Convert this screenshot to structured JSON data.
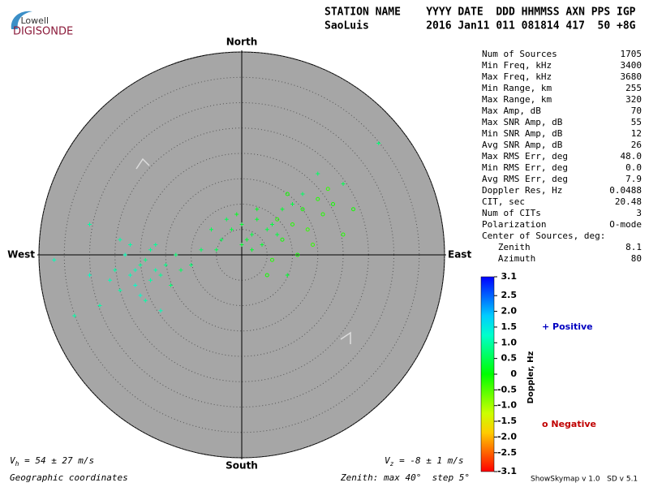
{
  "logo": {
    "top": "Lowell",
    "bottom": "DIGISONDE"
  },
  "header": {
    "line1": "STATION NAME    YYYY DATE  DDD HHMMSS AXN PPS IGP",
    "line2": "SaoLuis         2016 Jan11 011 081814 417  50 +8G"
  },
  "stats": [
    {
      "label": "Num of Sources",
      "value": "1705"
    },
    {
      "label": "Min Freq, kHz",
      "value": "3400"
    },
    {
      "label": "Max Freq, kHz",
      "value": "3680"
    },
    {
      "label": "Min Range, km",
      "value": "255"
    },
    {
      "label": "Max Range, km",
      "value": "320"
    },
    {
      "label": "Max Amp, dB",
      "value": "70"
    },
    {
      "label": "Max SNR Amp, dB",
      "value": "55"
    },
    {
      "label": "Min SNR Amp, dB",
      "value": "12"
    },
    {
      "label": "Avg SNR Amp, dB",
      "value": "26"
    },
    {
      "label": "Max RMS Err, deg",
      "value": "48.0"
    },
    {
      "label": "Min RMS Err, deg",
      "value": "0.0"
    },
    {
      "label": "Avg RMS Err, deg",
      "value": "7.9"
    },
    {
      "label": "Doppler Res, Hz",
      "value": "0.0488"
    },
    {
      "label": "CIT, sec",
      "value": "20.48"
    },
    {
      "label": "Num of CITs",
      "value": "3"
    },
    {
      "label": "Polarization",
      "value": "O-mode"
    },
    {
      "label": "Center of Sources, deg:",
      "value": null
    },
    {
      "label": "   Zenith",
      "value": "8.1"
    },
    {
      "label": "   Azimuth",
      "value": "80"
    }
  ],
  "footer": {
    "vh_v": "V",
    "vh_sub": "h",
    "vh_text": " = 54 ± 27 m/s",
    "vz_v": "V",
    "vz_sub": "z",
    "vz_text": " = -8 ± 1 m/s",
    "coords": "Geographic coordinates",
    "zenith": "Zenith: max 40°  step 5°",
    "version": "ShowSkymap v 1.0   SD v 5.1"
  },
  "chart_data": {
    "type": "skymap",
    "directions": {
      "north": "North",
      "south": "South",
      "east": "East",
      "west": "West"
    },
    "rlim": [
      0,
      40
    ],
    "rticks": [
      5,
      10,
      15,
      20,
      25,
      30,
      35,
      40
    ],
    "colorbar": {
      "label": "Doppler, Hz",
      "lim": [
        -3.1,
        3.1
      ],
      "ticks": [
        3.1,
        2.5,
        {
          "value": 2.0,
          "label": "2.0"
        },
        1.5,
        {
          "value": 1.0,
          "label": "1.0"
        },
        0.5,
        0,
        -0.5,
        {
          "value": -1.0,
          "label": "-1.0"
        },
        -1.5,
        {
          "value": -2.0,
          "label": "-2.0"
        },
        -2.5,
        -3.1
      ]
    },
    "series": [
      {
        "name": "+ Positive",
        "color": "#0000c0",
        "x": [
          -25,
          -22,
          -20,
          -18,
          -21,
          -19,
          -17,
          -23,
          -16,
          -24,
          -20,
          -18,
          -15,
          -22,
          -26,
          -14,
          -19,
          -21,
          -17,
          -13,
          -28,
          -30,
          -12,
          -24,
          -16,
          -2,
          0,
          2,
          3,
          -4,
          1,
          5,
          -1,
          4,
          6,
          -3,
          2,
          8,
          7,
          -6,
          10,
          12,
          0,
          3,
          -5,
          -37,
          27,
          20,
          -30,
          -33,
          -8,
          -10,
          9,
          15
        ],
        "y": [
          -3,
          -4,
          -2,
          -5,
          -6,
          -1,
          -3,
          0,
          -4,
          -7,
          -8,
          1,
          -2,
          2,
          -5,
          -6,
          -9,
          -3,
          2,
          0,
          -10,
          -4,
          -3,
          3,
          -11,
          5,
          6,
          4,
          7,
          3,
          3,
          5,
          8,
          2,
          6,
          7,
          1,
          9,
          4,
          5,
          10,
          12,
          2,
          9,
          1,
          -1,
          22,
          14,
          6,
          -12,
          1,
          -2,
          -4,
          16
        ],
        "values": [
          1.0,
          1.1,
          0.9,
          1.0,
          1.2,
          0.8,
          1.0,
          1.1,
          0.9,
          1.0,
          1.2,
          0.9,
          0.8,
          1.0,
          1.1,
          0.7,
          1.0,
          1.1,
          0.9,
          0.7,
          1.0,
          1.2,
          0.6,
          1.0,
          1.1,
          0.4,
          0.3,
          0.4,
          0.3,
          0.5,
          0.3,
          0.4,
          0.2,
          0.3,
          0.4,
          0.5,
          0.3,
          0.3,
          0.4,
          0.5,
          0.4,
          0.6,
          0.3,
          0.2,
          0.5,
          1.1,
          0.7,
          0.5,
          1.0,
          1.0,
          0.6,
          0.7,
          0.3,
          0.6
        ]
      },
      {
        "name": "o Negative",
        "color": "#c00000",
        "x": [
          8,
          10,
          12,
          14,
          6,
          9,
          16,
          11,
          13,
          15,
          18,
          20,
          5,
          7,
          17,
          22
        ],
        "y": [
          3,
          6,
          9,
          2,
          -1,
          12,
          8,
          0,
          5,
          11,
          10,
          4,
          -4,
          7,
          13,
          9
        ],
        "values": [
          -0.1,
          -0.2,
          -0.1,
          -0.3,
          -0.2,
          -0.1,
          -0.2,
          -0.1,
          -0.3,
          -0.2,
          -0.1,
          -0.2,
          -0.1,
          -0.2,
          -0.3,
          -0.1
        ]
      }
    ]
  }
}
